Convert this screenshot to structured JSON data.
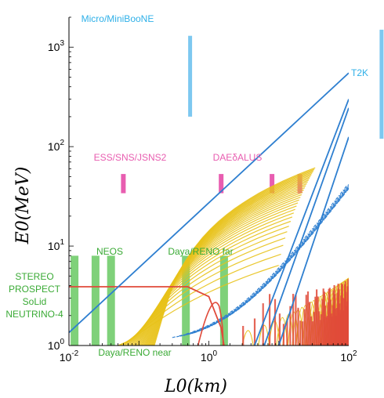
{
  "chart_data": {
    "type": "line",
    "xlabel": "L0(km)",
    "ylabel": "E0(MeV)",
    "xscale": "log",
    "yscale": "log",
    "xlim": [
      0.01,
      100
    ],
    "ylim": [
      1,
      2000
    ],
    "x_ticks": [
      {
        "value": 0.01,
        "base": "10",
        "exp": "-2"
      },
      {
        "value": 1,
        "base": "10",
        "exp": "0"
      },
      {
        "value": 100,
        "base": "10",
        "exp": "2"
      }
    ],
    "y_ticks": [
      {
        "value": 1,
        "base": "10",
        "exp": "0"
      },
      {
        "value": 10,
        "base": "10",
        "exp": "1"
      },
      {
        "value": 100,
        "base": "10",
        "exp": "2"
      },
      {
        "value": 1000,
        "base": "10",
        "exp": "3"
      }
    ],
    "colors": {
      "short_baseline": "#7dc8f0",
      "accelerator": "#e85db0",
      "reactor": "#7fd17a",
      "reactor_text": "#3aaa35",
      "line_blue": "#2e7fd0",
      "curve_yellow": "#e8c21a",
      "curve_red": "#e04a3a"
    },
    "experiments": [
      {
        "name": "Micro/MiniBooNE",
        "color": "#2fb0e8",
        "bands": [
          {
            "L": 0.54,
            "E_min": 200,
            "E_max": 1300
          }
        ]
      },
      {
        "name": "T2K",
        "color": "#2fb0e8",
        "bands": [
          {
            "L": 295,
            "E_min": 120,
            "E_max": 1500
          }
        ]
      },
      {
        "name": "ESS/SNS/JSNS2",
        "color": "#e85db0",
        "bands": [
          {
            "L": 0.06,
            "E_min": 34,
            "E_max": 53
          }
        ]
      },
      {
        "name": "DAEδALUS",
        "color": "#e85db0",
        "bands": [
          {
            "L": 1.5,
            "E_min": 34,
            "E_max": 53
          },
          {
            "L": 8,
            "E_min": 34,
            "E_max": 53
          },
          {
            "L": 20,
            "E_min": 34,
            "E_max": 53
          }
        ]
      },
      {
        "name": "NEOS",
        "color": "#3aaa35",
        "bands": [
          {
            "L": 0.024,
            "E_min": 1.0,
            "E_max": 8.0
          },
          {
            "L": 0.04,
            "E_min": 1.0,
            "E_max": 8.0
          }
        ]
      },
      {
        "name": "Daya/RENO far",
        "color": "#3aaa35",
        "bands": [
          {
            "L": 1.65,
            "E_min": 1.0,
            "E_max": 8.0
          }
        ]
      },
      {
        "name": "Daya/RENO near",
        "color": "#3aaa35",
        "bands": [
          {
            "L": 0.47,
            "E_min": 1.0,
            "E_max": 8.0
          }
        ]
      },
      {
        "name": "STEREO\nPROSPECT\nSoLid\nNEUTRINO-4",
        "color": "#3aaa35",
        "bands": [
          {
            "L": 0.012,
            "E_min": 1.0,
            "E_max": 8.0
          }
        ]
      }
    ],
    "blue_lines": [
      {
        "points": [
          [
            0.01,
            1.35
          ],
          [
            100,
            550
          ]
        ]
      },
      {
        "points": [
          [
            4.5,
            1.0
          ],
          [
            100,
            300
          ]
        ]
      },
      {
        "points": [
          [
            6.2,
            1.0
          ],
          [
            100,
            245
          ]
        ]
      },
      {
        "points": [
          [
            10,
            1.0
          ],
          [
            100,
            125
          ]
        ]
      }
    ],
    "red_curve": {
      "points": [
        [
          0.01,
          3.9
        ],
        [
          0.5,
          3.9
        ],
        [
          1.0,
          3.1
        ],
        [
          1.5,
          1.5
        ],
        [
          1.65,
          1.0
        ]
      ]
    }
  }
}
